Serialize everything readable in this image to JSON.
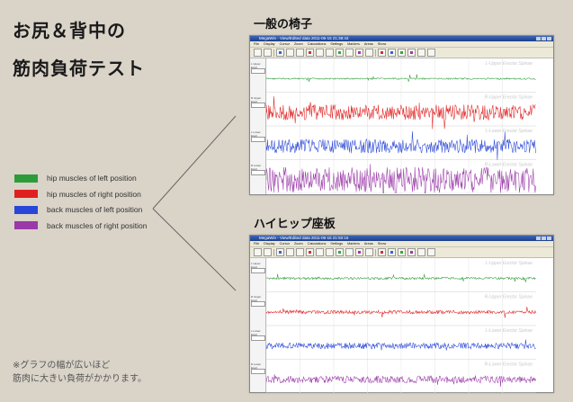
{
  "heading": {
    "line1": "お尻＆背中の",
    "line2": "筋肉負荷テスト"
  },
  "legend": [
    {
      "label": "hip muscles of left position",
      "color": "#2e9b3a"
    },
    {
      "label": "hip muscles of right position",
      "color": "#e02020"
    },
    {
      "label": "back muscles of left position",
      "color": "#2846d8"
    },
    {
      "label": "back muscles of right position",
      "color": "#9a3aa8"
    }
  ],
  "note": {
    "line1": "※グラフの幅が広いほど",
    "line2": "筋肉に大きい負荷がかかります。"
  },
  "panels": [
    {
      "label": "一般の椅子",
      "window_title": "MegaWin - View/Edited data 2011-06-15 21:38:43",
      "menu": [
        "File",
        "Display",
        "Cursor",
        "Zoom",
        "Calculations",
        "Settings",
        "Markers",
        "Areas",
        "Show"
      ],
      "channels": [
        {
          "name": "L-Upper Erector Spinae",
          "color": "#2e9b3a",
          "amplitude": 0.05
        },
        {
          "name": "R-Upper Erector Spinae",
          "color": "#e02020",
          "amplitude": 0.55
        },
        {
          "name": "L-Lower Erector Spinae",
          "color": "#2846d8",
          "amplitude": 0.5
        },
        {
          "name": "R-Lower Erector Spinae",
          "color": "#9a3aa8",
          "amplitude": 0.9
        }
      ],
      "side_labels": [
        "L Upper Erect",
        "R Upper Erect",
        "L Lower Erect",
        "R Lower Erect"
      ]
    },
    {
      "label": "ハイヒップ座板",
      "window_title": "MegaWin - View/Edited data 2011-06-15 21:50:16",
      "menu": [
        "File",
        "Display",
        "Cursor",
        "Zoom",
        "Calculations",
        "Settings",
        "Markers",
        "Areas",
        "Show"
      ],
      "channels": [
        {
          "name": "L-Upper Erector Spinae",
          "color": "#2e9b3a",
          "amplitude": 0.08
        },
        {
          "name": "R-Upper Erector Spinae",
          "color": "#e02020",
          "amplitude": 0.12
        },
        {
          "name": "L-Lower Erector Spinae",
          "color": "#2846d8",
          "amplitude": 0.22
        },
        {
          "name": "R-Lower Erector Spinae",
          "color": "#9a3aa8",
          "amplitude": 0.25
        }
      ],
      "side_labels": [
        "L Upper Erect",
        "R Upper Erect",
        "L Lower Erect",
        "R Lower Erect"
      ]
    }
  ]
}
